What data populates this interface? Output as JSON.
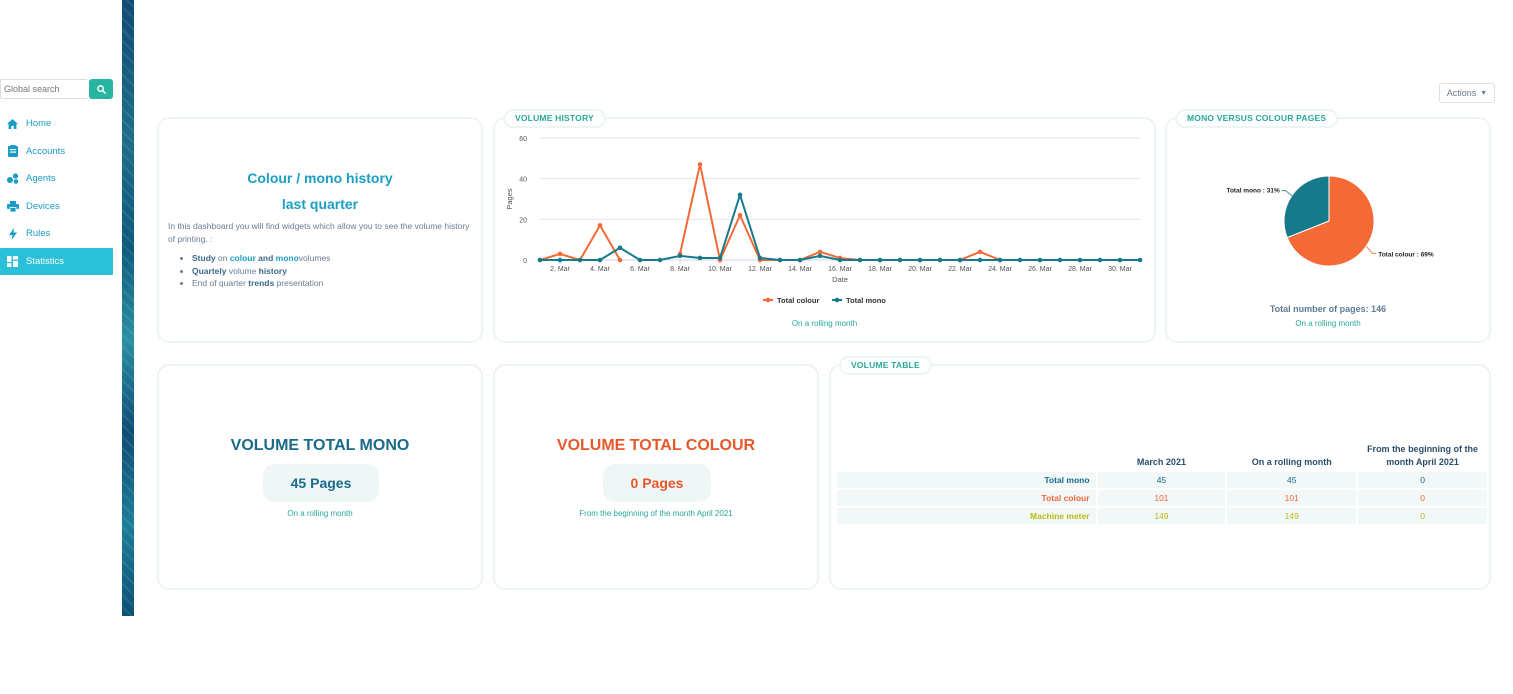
{
  "search": {
    "placeholder": "Global search"
  },
  "sidebar": {
    "items": [
      {
        "label": "Home",
        "icon": "home-icon"
      },
      {
        "label": "Accounts",
        "icon": "accounts-icon"
      },
      {
        "label": "Agents",
        "icon": "agents-icon"
      },
      {
        "label": "Devices",
        "icon": "printer-icon"
      },
      {
        "label": "Rules",
        "icon": "lightning-icon"
      },
      {
        "label": "Statistics",
        "icon": "dashboard-icon",
        "active": true
      }
    ]
  },
  "actions": {
    "label": "Actions"
  },
  "intro": {
    "title_line1": "Colour / mono history",
    "title_line2": "last quarter",
    "text": "In this dashboard you will find widgets which allow you to see the volume history of printing. :",
    "bullets": [
      {
        "pre_bold": "Study",
        "mid1": " on ",
        "accent1": "colour",
        "mid2": " and ",
        "accent2": "mono",
        "post": "volumes"
      },
      {
        "pre_bold": "Quartely",
        "mid1": " volume ",
        "bold2": "history"
      },
      {
        "pre": "End of quarter ",
        "bold": "trends",
        "post": " presentation"
      }
    ]
  },
  "volume_history": {
    "title": "VOLUME HISTORY",
    "note": "On a rolling month"
  },
  "pie_panel": {
    "title": "MONO VERSUS COLOUR PAGES",
    "total": "Total number of pages: 146",
    "note": "On a rolling month"
  },
  "stat_mono": {
    "title": "VOLUME TOTAL MONO",
    "value": "45 Pages",
    "note": "On a rolling month"
  },
  "stat_colour": {
    "title": "VOLUME TOTAL COLOUR",
    "value": "0 Pages",
    "note": "From the beginning of the month April 2021"
  },
  "volume_table": {
    "title": "VOLUME TABLE",
    "headers": [
      "March 2021",
      "On a rolling month",
      "From the beginning of the month April 2021"
    ],
    "rows": [
      {
        "label": "Total mono",
        "values": [
          "45",
          "45",
          "0"
        ]
      },
      {
        "label": "Total colour",
        "values": [
          "101",
          "101",
          "0"
        ]
      },
      {
        "label": "Machine meter",
        "values": [
          "149",
          "149",
          "0"
        ]
      }
    ]
  },
  "colors": {
    "colour": "#f46a36",
    "mono": "#167a8a",
    "accent": "#27a89a",
    "link": "#1b9ec3"
  },
  "chart_data": [
    {
      "type": "line",
      "xlabel": "Date",
      "ylabel": "Pages",
      "ylim": [
        0,
        60
      ],
      "yticks": [
        0,
        20,
        40,
        60
      ],
      "xtick_labels": [
        "2. Mar",
        "4. Mar",
        "6. Mar",
        "8. Mar",
        "10. Mar",
        "12. Mar",
        "14. Mar",
        "16. Mar",
        "18. Mar",
        "20. Mar",
        "22. Mar",
        "24. Mar",
        "26. Mar",
        "28. Mar",
        "30. Mar"
      ],
      "x": [
        1,
        2,
        3,
        4,
        5,
        6,
        7,
        8,
        9,
        10,
        11,
        12,
        13,
        14,
        15,
        16,
        17,
        18,
        19,
        20,
        21,
        22,
        23,
        24,
        25,
        26,
        27,
        28,
        29,
        30,
        31
      ],
      "legend_position": "bottom",
      "grid": true,
      "series": [
        {
          "name": "Total colour",
          "values": [
            0,
            3,
            0,
            17,
            0,
            null,
            null,
            3,
            47,
            0,
            22,
            0,
            0,
            0,
            4,
            1,
            0,
            0,
            0,
            0,
            0,
            0,
            4,
            0,
            null,
            null,
            null,
            null,
            null,
            null,
            null
          ]
        },
        {
          "name": "Total mono",
          "values": [
            0,
            0,
            0,
            0,
            6,
            0,
            0,
            2,
            1,
            1,
            32,
            1,
            0,
            0,
            2,
            0,
            0,
            0,
            0,
            0,
            0,
            0,
            0,
            0,
            0,
            0,
            0,
            0,
            0,
            0,
            0
          ]
        }
      ]
    },
    {
      "type": "pie",
      "slices": [
        {
          "label": "Total colour : 69%",
          "value": 69
        },
        {
          "label": "Total mono : 31%",
          "value": 31
        }
      ]
    }
  ]
}
